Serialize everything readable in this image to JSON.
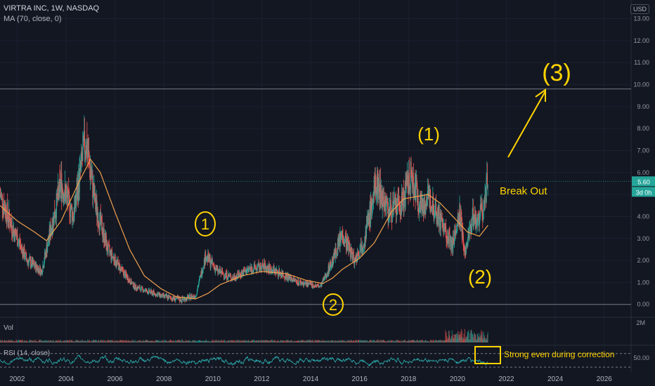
{
  "header": {
    "title": "VIRTRA INC, 1W, NASDAQ",
    "indicator": "MA (70, close, 0)",
    "currency": "USD"
  },
  "price_badge": "5.60",
  "countdown_badge": "3d 0h",
  "volume_label": "Vol",
  "volume_tick": "2M",
  "rsi_label": "RSI (14, close)",
  "rsi_tick": "50.00",
  "annotations": {
    "wave1_left": "1",
    "wave2_bottom": "2",
    "wave1_right": "(1)",
    "wave2_right": "(2)",
    "wave3": "(3)",
    "breakout": "Break Out",
    "rsi_note": "Strong even during correction"
  },
  "colors": {
    "background": "#131722",
    "up": "#26a69a",
    "down": "#ef5350",
    "ma": "#f0a04b",
    "rsi": "#2bb3b3",
    "annotation": "#ffd400"
  },
  "chart_data": {
    "type": "candlestick",
    "x_ticks": [
      "2002",
      "2004",
      "2006",
      "2008",
      "2010",
      "2012",
      "2014",
      "2016",
      "2018",
      "2020",
      "2022",
      "2024",
      "2026"
    ],
    "y_ticks": [
      "0.00",
      "1.00",
      "2.00",
      "3.00",
      "4.00",
      "5.00",
      "6.00",
      "7.00",
      "8.00",
      "9.00",
      "10.00",
      "11.00",
      "12.00",
      "13.00"
    ],
    "ylim": [
      -0.2,
      13.4
    ],
    "xlim": [
      2001.3,
      2027.1
    ],
    "price_path": [
      [
        2001.3,
        5.0
      ],
      [
        2001.8,
        3.5
      ],
      [
        2002.4,
        2.0
      ],
      [
        2003.0,
        1.5
      ],
      [
        2003.4,
        3.5
      ],
      [
        2003.8,
        5.5
      ],
      [
        2004.3,
        4.0
      ],
      [
        2004.8,
        7.5
      ],
      [
        2005.2,
        4.5
      ],
      [
        2005.7,
        2.5
      ],
      [
        2006.3,
        1.5
      ],
      [
        2006.8,
        0.8
      ],
      [
        2007.3,
        0.6
      ],
      [
        2008.0,
        0.35
      ],
      [
        2008.7,
        0.2
      ],
      [
        2009.3,
        0.4
      ],
      [
        2009.7,
        2.2
      ],
      [
        2010.2,
        1.5
      ],
      [
        2010.8,
        1.2
      ],
      [
        2011.5,
        1.6
      ],
      [
        2012.1,
        1.7
      ],
      [
        2012.8,
        1.4
      ],
      [
        2013.5,
        1.0
      ],
      [
        2014.4,
        0.8
      ],
      [
        2014.9,
        2.0
      ],
      [
        2015.3,
        3.2
      ],
      [
        2015.8,
        2.0
      ],
      [
        2016.2,
        3.0
      ],
      [
        2016.7,
        5.5
      ],
      [
        2017.2,
        4.2
      ],
      [
        2017.7,
        4.5
      ],
      [
        2018.1,
        5.8
      ],
      [
        2018.5,
        4.5
      ],
      [
        2018.9,
        4.8
      ],
      [
        2019.4,
        3.6
      ],
      [
        2019.8,
        2.6
      ],
      [
        2020.1,
        4.2
      ],
      [
        2020.3,
        2.4
      ],
      [
        2020.6,
        3.9
      ],
      [
        2020.9,
        4.0
      ],
      [
        2021.1,
        4.6
      ],
      [
        2021.25,
        5.6
      ]
    ],
    "ma70_path": [
      [
        2001.3,
        4.5
      ],
      [
        2002.0,
        3.8
      ],
      [
        2002.7,
        3.3
      ],
      [
        2003.2,
        2.9
      ],
      [
        2003.8,
        3.8
      ],
      [
        2004.5,
        5.5
      ],
      [
        2005.0,
        6.6
      ],
      [
        2005.4,
        6.0
      ],
      [
        2006.0,
        4.2
      ],
      [
        2006.6,
        2.5
      ],
      [
        2007.2,
        1.3
      ],
      [
        2007.9,
        0.7
      ],
      [
        2008.5,
        0.35
      ],
      [
        2009.3,
        0.25
      ],
      [
        2009.8,
        0.5
      ],
      [
        2010.3,
        0.9
      ],
      [
        2011.2,
        1.3
      ],
      [
        2012.0,
        1.5
      ],
      [
        2013.0,
        1.4
      ],
      [
        2013.8,
        1.1
      ],
      [
        2014.5,
        0.95
      ],
      [
        2014.9,
        1.2
      ],
      [
        2015.3,
        1.6
      ],
      [
        2016.0,
        2.1
      ],
      [
        2016.6,
        2.8
      ],
      [
        2017.3,
        4.2
      ],
      [
        2017.8,
        4.8
      ],
      [
        2018.3,
        4.9
      ],
      [
        2018.8,
        5.0
      ],
      [
        2019.3,
        4.6
      ],
      [
        2019.9,
        3.9
      ],
      [
        2020.4,
        3.3
      ],
      [
        2020.9,
        3.1
      ],
      [
        2021.25,
        3.6
      ]
    ],
    "resistance_level": 9.8,
    "support_level": 0.0,
    "last_price": 5.6,
    "rsi_bounds": [
      30,
      70
    ],
    "volume_max": 2000000
  }
}
